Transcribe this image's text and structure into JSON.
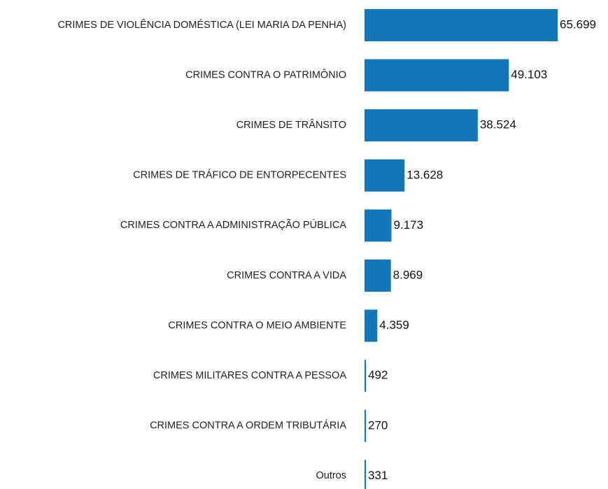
{
  "chart_data": {
    "type": "barh",
    "categories": [
      "CRIMES DE VIOLÊNCIA DOMÉSTICA (LEI MARIA DA PENHA)",
      "CRIMES CONTRA O PATRIMÔNIO",
      "CRIMES DE TRÂNSITO",
      "CRIMES DE TRÁFICO DE ENTORPECENTES",
      "CRIMES CONTRA A ADMINISTRAÇÃO PÚBLICA",
      "CRIMES CONTRA A VIDA",
      "CRIMES CONTRA O MEIO AMBIENTE",
      "CRIMES MILITARES CONTRA A PESSOA",
      "CRIMES CONTRA A ORDEM TRIBUTÁRIA",
      "Outros"
    ],
    "values": [
      65699,
      49103,
      38524,
      13628,
      9173,
      8969,
      4359,
      492,
      270,
      331
    ],
    "value_labels": [
      "65.699",
      "49.103",
      "38.524",
      "13.628",
      "9.173",
      "8.969",
      "4.359",
      "492",
      "270",
      "331"
    ],
    "color": "#1177b8"
  }
}
